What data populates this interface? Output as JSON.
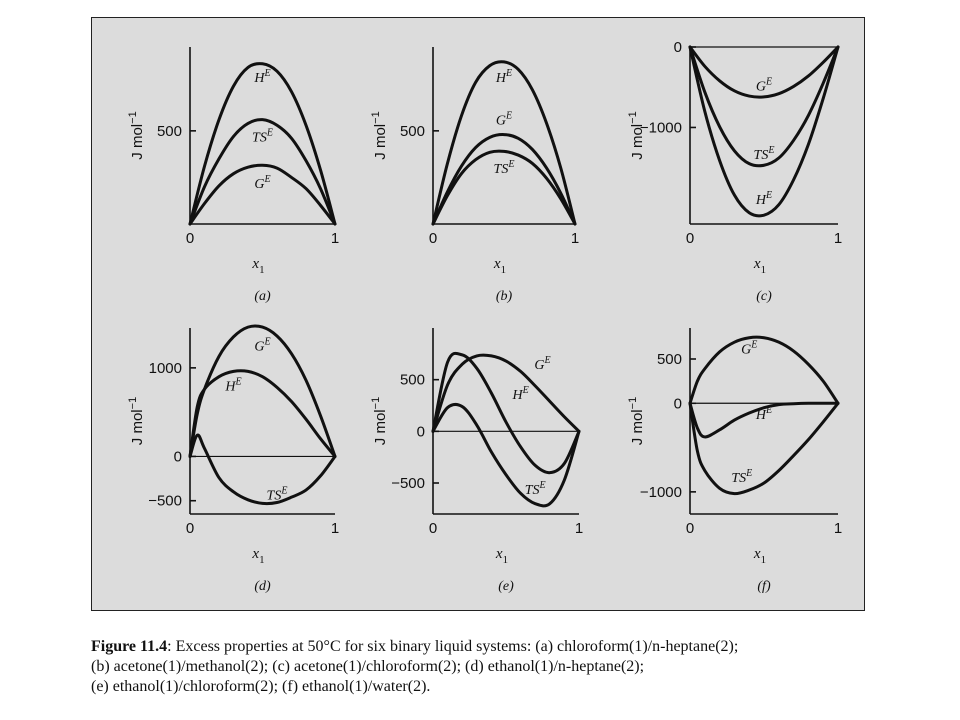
{
  "caption": {
    "title": "Figure 11.4",
    "lines": [
      ": Excess properties at 50°C for six binary liquid systems: (a) chloroform(1)/n-heptane(2);",
      "(b) acetone(1)/methanol(2); (c) acetone(1)/chloroform(2); (d) ethanol(1)/n-heptane(2);",
      "(e) ethanol(1)/chloroform(2); (f) ethanol(1)/water(2)."
    ]
  },
  "chart_data": [
    {
      "type": "line",
      "tag": "(a)",
      "xlabel": "x1",
      "xlabel_sub": "1",
      "ylabel": "J mol−1",
      "xlim": [
        0,
        1
      ],
      "ylim": [
        0,
        950
      ],
      "x_ticks": [
        {
          "value": 0,
          "label": "0"
        },
        {
          "value": 1,
          "label": "1"
        }
      ],
      "y_ticks": [
        {
          "value": 500,
          "label": "500"
        }
      ],
      "x": [
        0,
        0.1,
        0.2,
        0.3,
        0.4,
        0.5,
        0.6,
        0.7,
        0.8,
        0.9,
        1
      ],
      "series": [
        {
          "name": "HE",
          "values": [
            0,
            310,
            560,
            740,
            840,
            860,
            820,
            710,
            530,
            290,
            0
          ],
          "label_at": [
            0.5,
            790
          ]
        },
        {
          "name": "TSE",
          "values": [
            0,
            200,
            350,
            470,
            540,
            560,
            530,
            460,
            340,
            190,
            0
          ],
          "label_at": [
            0.5,
            470
          ]
        },
        {
          "name": "GE",
          "values": [
            0,
            110,
            205,
            270,
            305,
            315,
            300,
            250,
            190,
            100,
            0
          ],
          "label_at": [
            0.5,
            220
          ]
        }
      ]
    },
    {
      "type": "line",
      "tag": "(b)",
      "xlabel": "x1",
      "xlabel_sub": "1",
      "ylabel": "J mol−1",
      "xlim": [
        0,
        1
      ],
      "ylim": [
        0,
        950
      ],
      "x_ticks": [
        {
          "value": 0,
          "label": "0"
        },
        {
          "value": 1,
          "label": "1"
        }
      ],
      "y_ticks": [
        {
          "value": 500,
          "label": "500"
        }
      ],
      "x": [
        0,
        0.1,
        0.2,
        0.3,
        0.4,
        0.5,
        0.6,
        0.7,
        0.8,
        0.9,
        1
      ],
      "series": [
        {
          "name": "HE",
          "values": [
            0,
            320,
            580,
            760,
            850,
            870,
            830,
            720,
            540,
            300,
            0
          ],
          "label_at": [
            0.5,
            790
          ]
        },
        {
          "name": "GE",
          "values": [
            0,
            170,
            310,
            410,
            465,
            480,
            460,
            400,
            300,
            165,
            0
          ],
          "label_at": [
            0.5,
            560
          ]
        },
        {
          "name": "TSE",
          "values": [
            0,
            150,
            270,
            345,
            385,
            390,
            370,
            325,
            245,
            135,
            0
          ],
          "label_at": [
            0.5,
            300
          ]
        }
      ]
    },
    {
      "type": "line",
      "tag": "(c)",
      "xlabel": "x1",
      "xlabel_sub": "1",
      "ylabel": "J mol−1",
      "xlim": [
        0,
        1
      ],
      "ylim": [
        -2200,
        0
      ],
      "x_ticks": [
        {
          "value": 0,
          "label": "0"
        },
        {
          "value": 1,
          "label": "1"
        }
      ],
      "y_ticks": [
        {
          "value": 0,
          "label": "0"
        },
        {
          "value": -1000,
          "label": "−1000"
        }
      ],
      "x": [
        0,
        0.1,
        0.2,
        0.3,
        0.4,
        0.5,
        0.6,
        0.7,
        0.8,
        0.9,
        1
      ],
      "series": [
        {
          "name": "GE",
          "values": [
            0,
            -240,
            -420,
            -545,
            -610,
            -620,
            -580,
            -490,
            -360,
            -190,
            0
          ],
          "label_at": [
            0.5,
            -480
          ]
        },
        {
          "name": "TSE",
          "values": [
            0,
            -560,
            -990,
            -1290,
            -1450,
            -1470,
            -1380,
            -1160,
            -850,
            -450,
            0
          ],
          "label_at": [
            0.5,
            -1330
          ]
        },
        {
          "name": "HE",
          "values": [
            0,
            -800,
            -1410,
            -1840,
            -2060,
            -2090,
            -1960,
            -1650,
            -1210,
            -640,
            0
          ],
          "label_at": [
            0.5,
            -1890
          ]
        }
      ]
    },
    {
      "type": "line",
      "tag": "(d)",
      "xlabel": "x1",
      "xlabel_sub": "1",
      "ylabel": "J mol−1",
      "xlim": [
        0,
        1
      ],
      "ylim": [
        -650,
        1450
      ],
      "x_ticks": [
        {
          "value": 0,
          "label": "0"
        },
        {
          "value": 1,
          "label": "1"
        }
      ],
      "y_ticks": [
        {
          "value": 1000,
          "label": "1000"
        },
        {
          "value": 0,
          "label": "0"
        },
        {
          "value": -500,
          "label": "−500"
        }
      ],
      "x": [
        0,
        0.05,
        0.1,
        0.2,
        0.3,
        0.4,
        0.5,
        0.6,
        0.7,
        0.8,
        0.9,
        1
      ],
      "series": [
        {
          "name": "GE",
          "values": [
            0,
            480,
            760,
            1130,
            1350,
            1460,
            1460,
            1360,
            1160,
            860,
            460,
            0
          ],
          "label_at": [
            0.5,
            1250
          ]
        },
        {
          "name": "HE",
          "values": [
            0,
            560,
            760,
            900,
            960,
            960,
            900,
            780,
            620,
            420,
            200,
            0
          ],
          "label_at": [
            0.3,
            800
          ]
        },
        {
          "name": "TSE",
          "values": [
            0,
            240,
            90,
            -240,
            -400,
            -490,
            -530,
            -520,
            -460,
            -380,
            -220,
            0
          ],
          "label_at": [
            0.6,
            -430
          ]
        }
      ]
    },
    {
      "type": "line",
      "tag": "(e)",
      "xlabel": "x1",
      "xlabel_sub": "1",
      "ylabel": "J mol−1",
      "xlim": [
        0,
        1
      ],
      "ylim": [
        -800,
        1000
      ],
      "x_ticks": [
        {
          "value": 0,
          "label": "0"
        },
        {
          "value": 1,
          "label": "1"
        }
      ],
      "y_ticks": [
        {
          "value": 500,
          "label": "500"
        },
        {
          "value": 0,
          "label": "0"
        },
        {
          "value": -500,
          "label": "−500"
        }
      ],
      "x": [
        0,
        0.1,
        0.2,
        0.3,
        0.4,
        0.5,
        0.6,
        0.7,
        0.8,
        0.9,
        1
      ],
      "series": [
        {
          "name": "GE",
          "values": [
            0,
            450,
            650,
            730,
            730,
            680,
            580,
            440,
            290,
            140,
            0
          ],
          "label_at": [
            0.75,
            650
          ]
        },
        {
          "name": "HE",
          "values": [
            0,
            670,
            740,
            610,
            370,
            90,
            -150,
            -330,
            -400,
            -310,
            0
          ],
          "label_at": [
            0.6,
            360
          ]
        },
        {
          "name": "TSE",
          "values": [
            0,
            230,
            240,
            60,
            -200,
            -420,
            -600,
            -700,
            -700,
            -470,
            0
          ],
          "label_at": [
            0.7,
            -560
          ]
        }
      ]
    },
    {
      "type": "line",
      "tag": "(f)",
      "xlabel": "x1",
      "xlabel_sub": "1",
      "ylabel": "J mol−1",
      "xlim": [
        0,
        1
      ],
      "ylim": [
        -1250,
        850
      ],
      "x_ticks": [
        {
          "value": 0,
          "label": "0"
        },
        {
          "value": 1,
          "label": "1"
        }
      ],
      "y_ticks": [
        {
          "value": 500,
          "label": "500"
        },
        {
          "value": 0,
          "label": "0"
        },
        {
          "value": -1000,
          "label": "−1000"
        }
      ],
      "x": [
        0,
        0.05,
        0.1,
        0.2,
        0.3,
        0.4,
        0.5,
        0.6,
        0.7,
        0.8,
        0.9,
        1
      ],
      "series": [
        {
          "name": "GE",
          "values": [
            0,
            250,
            390,
            580,
            690,
            740,
            740,
            690,
            590,
            440,
            250,
            0
          ],
          "label_at": [
            0.4,
            620
          ]
        },
        {
          "name": "HE",
          "values": [
            0,
            -280,
            -380,
            -300,
            -190,
            -110,
            -50,
            -15,
            -5,
            0,
            0,
            0
          ],
          "label_at": [
            0.5,
            -120
          ]
        },
        {
          "name": "TSE",
          "values": [
            0,
            -540,
            -760,
            -960,
            -1020,
            -980,
            -900,
            -760,
            -590,
            -410,
            -210,
            0
          ],
          "label_at": [
            0.35,
            -830
          ]
        }
      ]
    }
  ]
}
